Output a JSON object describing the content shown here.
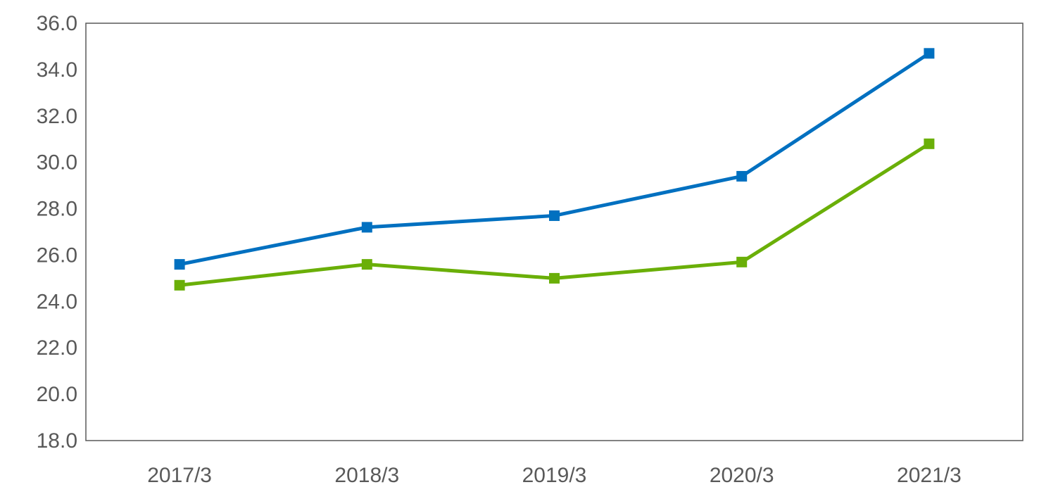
{
  "chart_data": {
    "type": "line",
    "title": "",
    "xlabel": "",
    "ylabel": "",
    "categories": [
      "2017/3",
      "2018/3",
      "2019/3",
      "2020/3",
      "2021/3"
    ],
    "ylim": [
      18.0,
      36.0
    ],
    "yticks": [
      "18.0",
      "20.0",
      "22.0",
      "24.0",
      "26.0",
      "28.0",
      "30.0",
      "32.0",
      "34.0",
      "36.0"
    ],
    "grid": false,
    "legend": "none",
    "series": [
      {
        "color": "#0070C0",
        "marker": "square",
        "values": [
          25.6,
          27.2,
          27.7,
          29.4,
          34.7
        ]
      },
      {
        "color": "#6AAF08",
        "marker": "square",
        "values": [
          24.7,
          25.6,
          25.0,
          25.7,
          30.8
        ]
      }
    ]
  }
}
